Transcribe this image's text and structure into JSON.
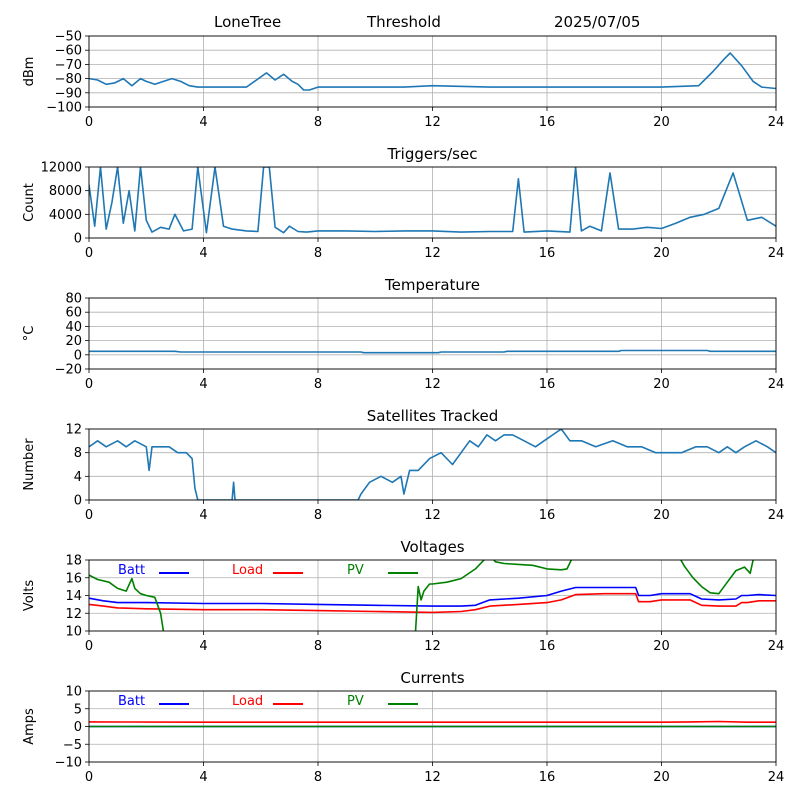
{
  "header": {
    "site": "LoneTree",
    "mode": "Threshold",
    "date": "2025/07/05"
  },
  "colors": {
    "series": "#1f77b4",
    "grid": "#b0b0b0",
    "batt": "#0000ff",
    "load": "#ff0000",
    "pv": "#008000"
  },
  "chart_data": [
    {
      "id": "signal",
      "type": "line",
      "title": "",
      "ylabel": "dBm",
      "xlim": [
        0,
        24
      ],
      "xticks": [
        0,
        4,
        8,
        12,
        16,
        20,
        24
      ],
      "ylim": [
        -100,
        -50
      ],
      "yticks": [
        -100,
        -90,
        -80,
        -70,
        -60,
        -50
      ],
      "grid": true,
      "series": [
        {
          "color": "#1f77b4",
          "x": [
            0,
            0.3,
            0.6,
            0.9,
            1.2,
            1.5,
            1.8,
            2.0,
            2.3,
            2.6,
            2.9,
            3.2,
            3.5,
            3.8,
            4.5,
            5.5,
            6.2,
            6.5,
            6.8,
            7.1,
            7.3,
            7.5,
            7.7,
            8.0,
            8.5,
            9.5,
            11,
            12,
            14,
            16,
            18,
            20,
            21.3,
            21.8,
            22.2,
            22.4,
            22.8,
            23.2,
            23.5,
            24
          ],
          "y": [
            -80,
            -81,
            -84,
            -83,
            -80,
            -85,
            -80,
            -82,
            -84,
            -82,
            -80,
            -82,
            -85,
            -86,
            -86,
            -86,
            -76,
            -81,
            -77,
            -82,
            -84,
            -88,
            -88,
            -86,
            -86,
            -86,
            -86,
            -85,
            -86,
            -86,
            -86,
            -86,
            -85,
            -75,
            -66,
            -62,
            -71,
            -82,
            -86,
            -87
          ]
        }
      ]
    },
    {
      "id": "triggers",
      "type": "line",
      "title": "Triggers/sec",
      "ylabel": "Count",
      "xlim": [
        0,
        24
      ],
      "xticks": [
        0,
        4,
        8,
        12,
        16,
        20,
        24
      ],
      "ylim": [
        0,
        12000
      ],
      "yticks": [
        0,
        4000,
        8000,
        12000
      ],
      "grid": true,
      "series": [
        {
          "color": "#1f77b4",
          "x": [
            0,
            0.2,
            0.4,
            0.6,
            0.8,
            1.0,
            1.2,
            1.4,
            1.6,
            1.8,
            2.0,
            2.2,
            2.5,
            2.8,
            3.0,
            3.3,
            3.6,
            3.8,
            4.1,
            4.4,
            4.7,
            5.0,
            5.5,
            5.9,
            6.1,
            6.3,
            6.5,
            6.8,
            7.0,
            7.3,
            7.6,
            8.0,
            9,
            10,
            11,
            12,
            13,
            14,
            14.8,
            15,
            15.2,
            16,
            16.8,
            17,
            17.2,
            17.5,
            17.9,
            18.2,
            18.5,
            19,
            19.5,
            20,
            20.5,
            21,
            21.5,
            22,
            22.5,
            23,
            23.5,
            24
          ],
          "y": [
            9000,
            2000,
            12000,
            1500,
            6000,
            12000,
            2500,
            8000,
            1200,
            12000,
            3000,
            1000,
            1800,
            1500,
            4000,
            1200,
            1500,
            12000,
            900,
            12000,
            2000,
            1500,
            1200,
            1100,
            12000,
            12000,
            1800,
            900,
            2000,
            1100,
            1000,
            1200,
            1200,
            1100,
            1200,
            1200,
            1000,
            1100,
            1100,
            10000,
            1000,
            1200,
            1000,
            12000,
            1200,
            2000,
            1200,
            11000,
            1500,
            1500,
            1800,
            1600,
            2500,
            3500,
            4000,
            5000,
            11000,
            3000,
            3500,
            2000
          ]
        }
      ]
    },
    {
      "id": "temperature",
      "type": "line",
      "title": "Temperature",
      "ylabel": "°C",
      "xlim": [
        0,
        24
      ],
      "xticks": [
        0,
        4,
        8,
        12,
        16,
        20,
        24
      ],
      "ylim": [
        -20,
        80
      ],
      "yticks": [
        -20,
        0,
        20,
        40,
        60,
        80
      ],
      "grid": true,
      "series": [
        {
          "color": "#1f77b4",
          "x": [
            0,
            3,
            3.2,
            9.5,
            9.6,
            12.2,
            12.3,
            14.5,
            14.6,
            18.5,
            18.6,
            21.6,
            21.7,
            24
          ],
          "y": [
            5,
            5,
            4,
            4,
            3,
            3,
            4,
            4,
            5,
            5,
            6,
            6,
            5,
            5
          ]
        }
      ]
    },
    {
      "id": "satellites",
      "type": "line",
      "title": "Satellites Tracked",
      "ylabel": "Number",
      "xlim": [
        0,
        24
      ],
      "xticks": [
        0,
        4,
        8,
        12,
        16,
        20,
        24
      ],
      "ylim": [
        0,
        12
      ],
      "yticks": [
        0,
        4,
        8,
        12
      ],
      "grid": true,
      "series": [
        {
          "color": "#1f77b4",
          "x": [
            0,
            0.3,
            0.6,
            1,
            1.3,
            1.6,
            2,
            2.1,
            2.2,
            2.4,
            2.8,
            3.1,
            3.4,
            3.6,
            3.7,
            3.8,
            5,
            5.05,
            5.1,
            7,
            9.4,
            9.5,
            9.8,
            10.2,
            10.6,
            10.9,
            11,
            11.2,
            11.5,
            11.9,
            12.3,
            12.7,
            13,
            13.3,
            13.6,
            13.9,
            14.2,
            14.5,
            14.8,
            15.2,
            15.6,
            15.9,
            16.2,
            16.5,
            16.8,
            17.2,
            17.7,
            18.3,
            18.8,
            19.3,
            19.8,
            20.2,
            20.7,
            21.2,
            21.6,
            22,
            22.3,
            22.6,
            22.9,
            23.3,
            23.7,
            24
          ],
          "y": [
            9,
            10,
            9,
            10,
            9,
            10,
            9,
            5,
            9,
            9,
            9,
            8,
            8,
            7,
            2,
            0,
            0,
            3,
            0,
            0,
            0,
            1,
            3,
            4,
            3,
            4,
            1,
            5,
            5,
            7,
            8,
            6,
            8,
            10,
            9,
            11,
            10,
            11,
            11,
            10,
            9,
            10,
            11,
            12,
            10,
            10,
            9,
            10,
            9,
            9,
            8,
            8,
            8,
            9,
            9,
            8,
            9,
            8,
            9,
            10,
            9,
            8
          ]
        }
      ]
    },
    {
      "id": "voltages",
      "type": "line",
      "title": "Voltages",
      "ylabel": "Volts",
      "xlim": [
        0,
        24
      ],
      "xticks": [
        0,
        4,
        8,
        12,
        16,
        20,
        24
      ],
      "ylim": [
        10,
        18
      ],
      "yticks": [
        10,
        12,
        14,
        16,
        18
      ],
      "grid": true,
      "legend": "top-left",
      "series": [
        {
          "name": "Batt",
          "color": "#0000ff",
          "x": [
            0,
            0.5,
            1,
            2,
            4,
            6,
            8,
            10,
            12,
            13,
            13.5,
            14,
            15,
            16,
            16.5,
            17,
            18,
            19.1,
            19.2,
            19.6,
            20,
            21,
            21.4,
            22,
            22.6,
            22.8,
            23,
            23.4,
            24
          ],
          "y": [
            13.7,
            13.4,
            13.2,
            13.2,
            13.1,
            13.1,
            13,
            12.9,
            12.8,
            12.8,
            12.9,
            13.5,
            13.7,
            14,
            14.5,
            14.9,
            14.9,
            14.9,
            14,
            14,
            14.2,
            14.2,
            13.6,
            13.5,
            13.6,
            14,
            14,
            14.1,
            14
          ]
        },
        {
          "name": "Load",
          "color": "#ff0000",
          "x": [
            0,
            0.5,
            1,
            2,
            4,
            6,
            8,
            10,
            12,
            13,
            13.5,
            14,
            15,
            16,
            16.5,
            17,
            18,
            19.1,
            19.2,
            19.6,
            20,
            21,
            21.4,
            22,
            22.6,
            22.8,
            23,
            23.4,
            24
          ],
          "y": [
            13,
            12.8,
            12.6,
            12.5,
            12.4,
            12.4,
            12.3,
            12.2,
            12.1,
            12.2,
            12.4,
            12.8,
            13,
            13.2,
            13.5,
            14.1,
            14.2,
            14.2,
            13.3,
            13.3,
            13.5,
            13.5,
            12.9,
            12.8,
            12.8,
            13.2,
            13.2,
            13.4,
            13.4
          ]
        },
        {
          "name": "PV",
          "color": "#008000",
          "x": [
            0,
            0.3,
            0.7,
            1,
            1.3,
            1.5,
            1.6,
            1.8,
            2.0,
            2.3,
            2.5,
            2.6,
            2.7,
            11.4,
            11.5,
            11.6,
            11.7,
            11.9,
            12,
            12.5,
            13,
            13.5,
            13.8,
            14,
            14.2,
            14.5,
            15,
            15.5,
            16,
            16.5,
            16.7,
            17,
            20.5,
            20.8,
            21.1,
            21.4,
            21.7,
            22,
            22.3,
            22.6,
            22.9,
            23.1,
            23.2,
            23.4
          ],
          "y": [
            16.3,
            15.8,
            15.5,
            14.8,
            14.5,
            15.9,
            14.8,
            14.2,
            14,
            13.8,
            12,
            10,
            9.5,
            9.5,
            15,
            13.5,
            14.5,
            15.3,
            15.3,
            15.5,
            15.9,
            17,
            18,
            18.5,
            17.8,
            17.6,
            17.5,
            17.4,
            17,
            16.9,
            17,
            19,
            19,
            17.3,
            16,
            15,
            14.3,
            14.2,
            15.5,
            16.8,
            17.2,
            16.5,
            18,
            19
          ]
        }
      ]
    },
    {
      "id": "currents",
      "type": "line",
      "title": "Currents",
      "ylabel": "Amps",
      "xlim": [
        0,
        24
      ],
      "xticks": [
        0,
        4,
        8,
        12,
        16,
        20,
        24
      ],
      "ylim": [
        -10,
        10
      ],
      "yticks": [
        -10,
        -5,
        0,
        5,
        10
      ],
      "grid": true,
      "legend": "top-left",
      "series": [
        {
          "name": "Batt",
          "color": "#0000ff",
          "x": [
            0,
            24
          ],
          "y": [
            0,
            0
          ]
        },
        {
          "name": "Load",
          "color": "#ff0000",
          "x": [
            0,
            4,
            8,
            12,
            16,
            20,
            21,
            22,
            23,
            24
          ],
          "y": [
            1.3,
            1.2,
            1.2,
            1.2,
            1.2,
            1.2,
            1.3,
            1.4,
            1.2,
            1.2
          ]
        },
        {
          "name": "PV",
          "color": "#008000",
          "x": [
            0,
            24
          ],
          "y": [
            0,
            0
          ]
        }
      ]
    }
  ]
}
